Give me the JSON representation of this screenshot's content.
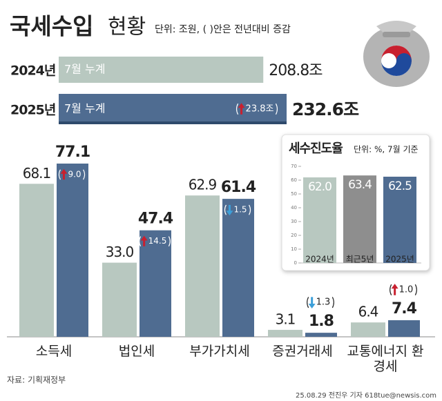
{
  "header": {
    "title": "국세수입",
    "title2": "현황",
    "unit": "단위: 조원, ( )안은 전년대비 증감"
  },
  "chart_data": [
    {
      "type": "hbar",
      "categories": [
        "2024년",
        "2025년"
      ],
      "bar_labels": [
        "7월 누계",
        "7월 누계"
      ],
      "values": [
        208.8,
        232.6
      ],
      "value_labels": [
        "208.8조",
        "232.6조"
      ],
      "colors": [
        "#b8c8c0",
        "#4f6c91"
      ],
      "changes": [
        null,
        23.8
      ],
      "change_labels": [
        null,
        "23.8조"
      ]
    },
    {
      "type": "grouped-bar",
      "categories": [
        "소득세",
        "법인세",
        "부가가치세",
        "증권거래세",
        "교통에너지 환경세"
      ],
      "series": [
        {
          "color": "#b8c8c0",
          "values": [
            68.1,
            33.0,
            62.9,
            3.1,
            6.4
          ],
          "value_labels": [
            "68.1",
            "33.0",
            "62.9",
            "3.1",
            "6.4"
          ]
        },
        {
          "color": "#4f6c91",
          "values": [
            77.1,
            47.4,
            61.4,
            1.8,
            7.4
          ],
          "changes": [
            9.0,
            14.5,
            -1.5,
            -1.3,
            1.0
          ],
          "change_labels": [
            "9.0",
            "14.5",
            "1.5",
            "1.3",
            "1.0"
          ]
        }
      ]
    },
    {
      "type": "bar",
      "title": "세수진도율",
      "subtitle": "단위: %, 7월 기준",
      "categories": [
        "2024년",
        "최근5년",
        "2025년"
      ],
      "values": [
        62.0,
        63.4,
        62.5
      ],
      "value_labels": [
        "62.0",
        "63.4",
        "62.5"
      ],
      "colors": [
        "#b8c8c0",
        "#8e8e8e",
        "#4f6c91"
      ],
      "ylim": [
        0,
        70
      ],
      "yticks": [
        0,
        10,
        20,
        30,
        40,
        50,
        60,
        70
      ]
    }
  ],
  "footer": {
    "source": "자료: 기획재정부",
    "credit": "25.08.29 전진우 기자 618tue@newsis.com"
  }
}
